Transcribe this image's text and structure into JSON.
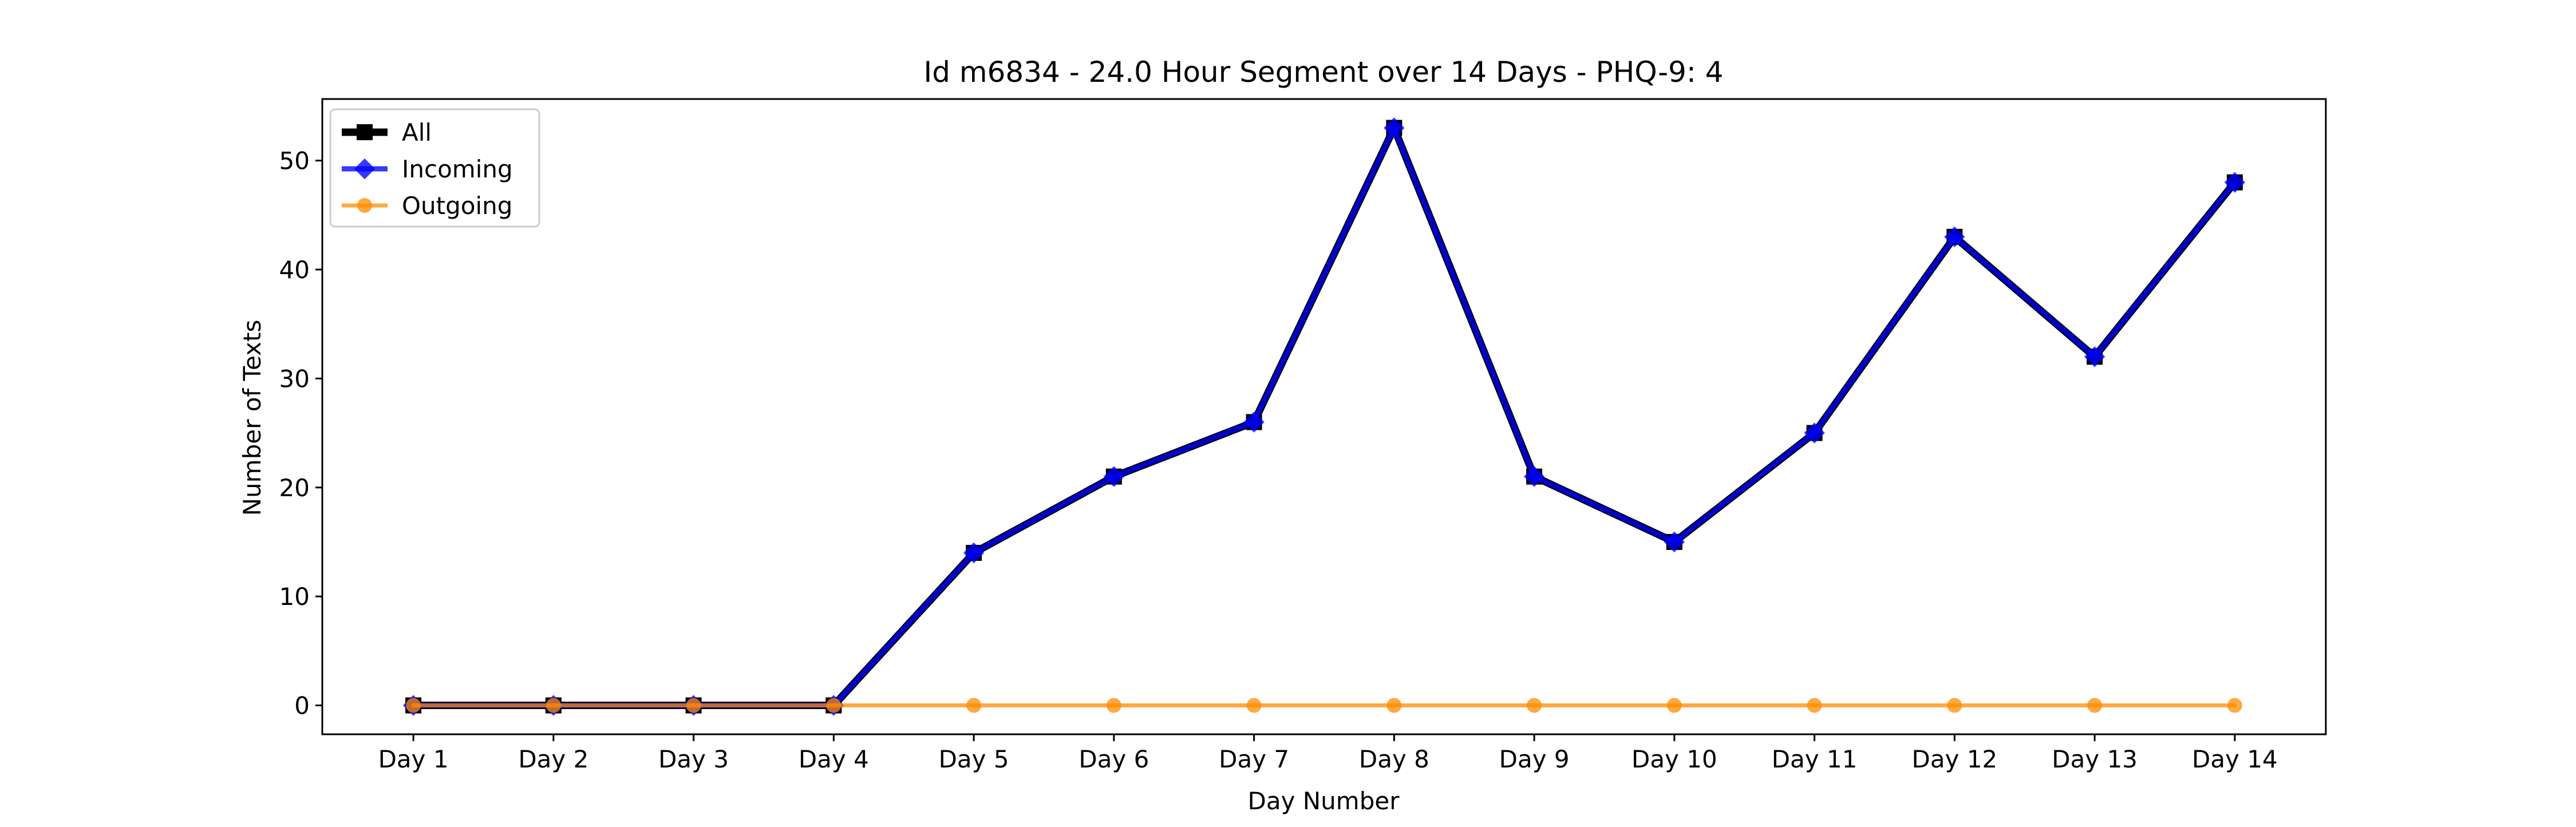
{
  "chart_data": {
    "type": "line",
    "title": "Id m6834 - 24.0 Hour Segment over 14 Days - PHQ-9: 4",
    "xlabel": "Day Number",
    "ylabel": "Number of Texts",
    "categories": [
      "Day 1",
      "Day 2",
      "Day 3",
      "Day 4",
      "Day 5",
      "Day 6",
      "Day 7",
      "Day 8",
      "Day 9",
      "Day 10",
      "Day 11",
      "Day 12",
      "Day 13",
      "Day 14"
    ],
    "ylim": [
      -2.65,
      55.65
    ],
    "yticks": [
      0,
      10,
      20,
      30,
      40,
      50
    ],
    "grid": false,
    "legend_position": "upper-left",
    "series": [
      {
        "name": "All",
        "color": "#000000",
        "marker": "square",
        "values": [
          0,
          0,
          0,
          0,
          14,
          21,
          26,
          53,
          21,
          15,
          25,
          43,
          32,
          48
        ]
      },
      {
        "name": "Incoming",
        "color": "#0000ff",
        "marker": "diamond",
        "values": [
          0,
          0,
          0,
          0,
          14,
          21,
          26,
          53,
          21,
          15,
          25,
          43,
          32,
          48
        ]
      },
      {
        "name": "Outgoing",
        "color": "#ff8c00",
        "marker": "circle",
        "values": [
          0,
          0,
          0,
          0,
          0,
          0,
          0,
          0,
          0,
          0,
          0,
          0,
          0,
          0
        ]
      }
    ]
  }
}
